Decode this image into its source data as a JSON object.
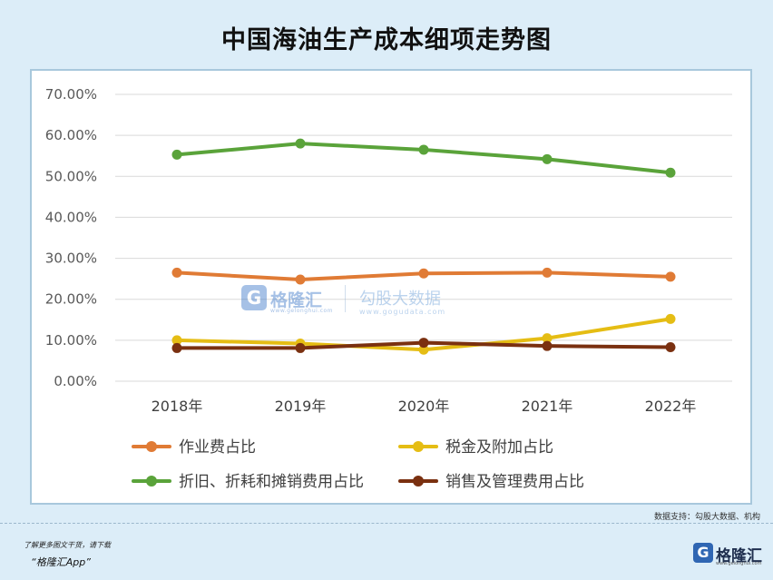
{
  "chart_data": {
    "type": "line",
    "title": "中国海油生产成本细项走势图",
    "categories": [
      "2018年",
      "2019年",
      "2020年",
      "2021年",
      "2022年"
    ],
    "yticks": [
      "0.00%",
      "10.00%",
      "20.00%",
      "30.00%",
      "40.00%",
      "50.00%",
      "60.00%",
      "70.00%"
    ],
    "ylim": [
      0,
      70
    ],
    "grid": true,
    "legend_position": "bottom",
    "series": [
      {
        "name": "作业费占比",
        "color": "#e07b35",
        "values": [
          26.5,
          24.8,
          26.3,
          26.5,
          25.5
        ]
      },
      {
        "name": "税金及附加占比",
        "color": "#e5bd14",
        "values": [
          10.0,
          9.2,
          7.7,
          10.5,
          15.2
        ]
      },
      {
        "name": "折旧、折耗和摊销费用占比",
        "color": "#5aa33a",
        "values": [
          55.3,
          58.0,
          56.5,
          54.2,
          50.9
        ]
      },
      {
        "name": "销售及管理费用占比",
        "color": "#7a3010",
        "values": [
          8.1,
          8.1,
          9.4,
          8.6,
          8.3
        ]
      }
    ]
  },
  "watermark": {
    "badge": "G",
    "brand": "格隆汇",
    "url": "www.gelonghui.com",
    "brand2": "勾股大数据",
    "url2": "www.gogudata.com"
  },
  "source": "数据支持：勾股大数据、机构",
  "footer": {
    "line1": "了解更多图文干货，请下载",
    "line2": "“格隆汇App”"
  },
  "logo": {
    "badge": "G",
    "name": "格隆汇",
    "url": "www.gelonghui.com"
  }
}
